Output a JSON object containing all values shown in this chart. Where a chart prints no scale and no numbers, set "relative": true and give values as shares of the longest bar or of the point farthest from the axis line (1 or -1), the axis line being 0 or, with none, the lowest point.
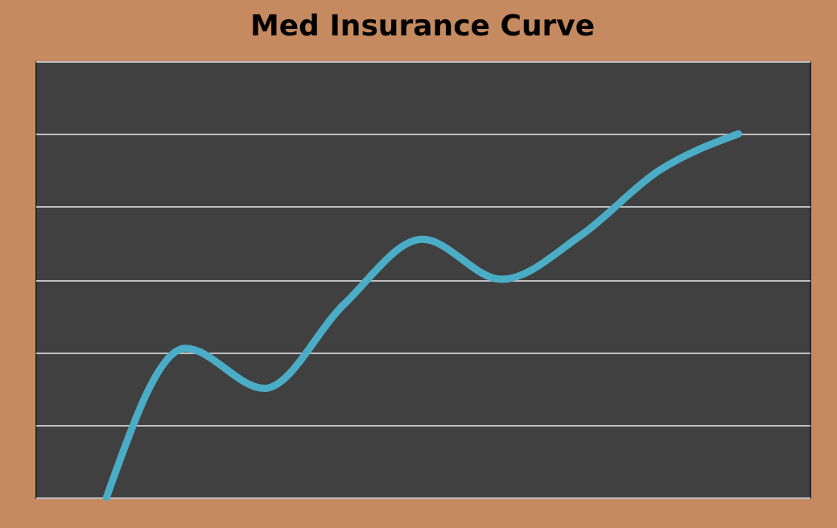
{
  "chart_data": {
    "type": "line",
    "title": "Med Insurance Curve",
    "relative": true,
    "categories": [
      null,
      null,
      null,
      null,
      null,
      null,
      null,
      null,
      null
    ],
    "series": [
      {
        "color": "#4bacc6",
        "values": [
          0,
          0.41,
          0.3,
          0.53,
          0.71,
          0.6,
          0.72,
          0.9,
          1.0
        ]
      }
    ],
    "grid": "y",
    "tick_labels": false,
    "marker": "none",
    "line_style": "solid"
  }
}
